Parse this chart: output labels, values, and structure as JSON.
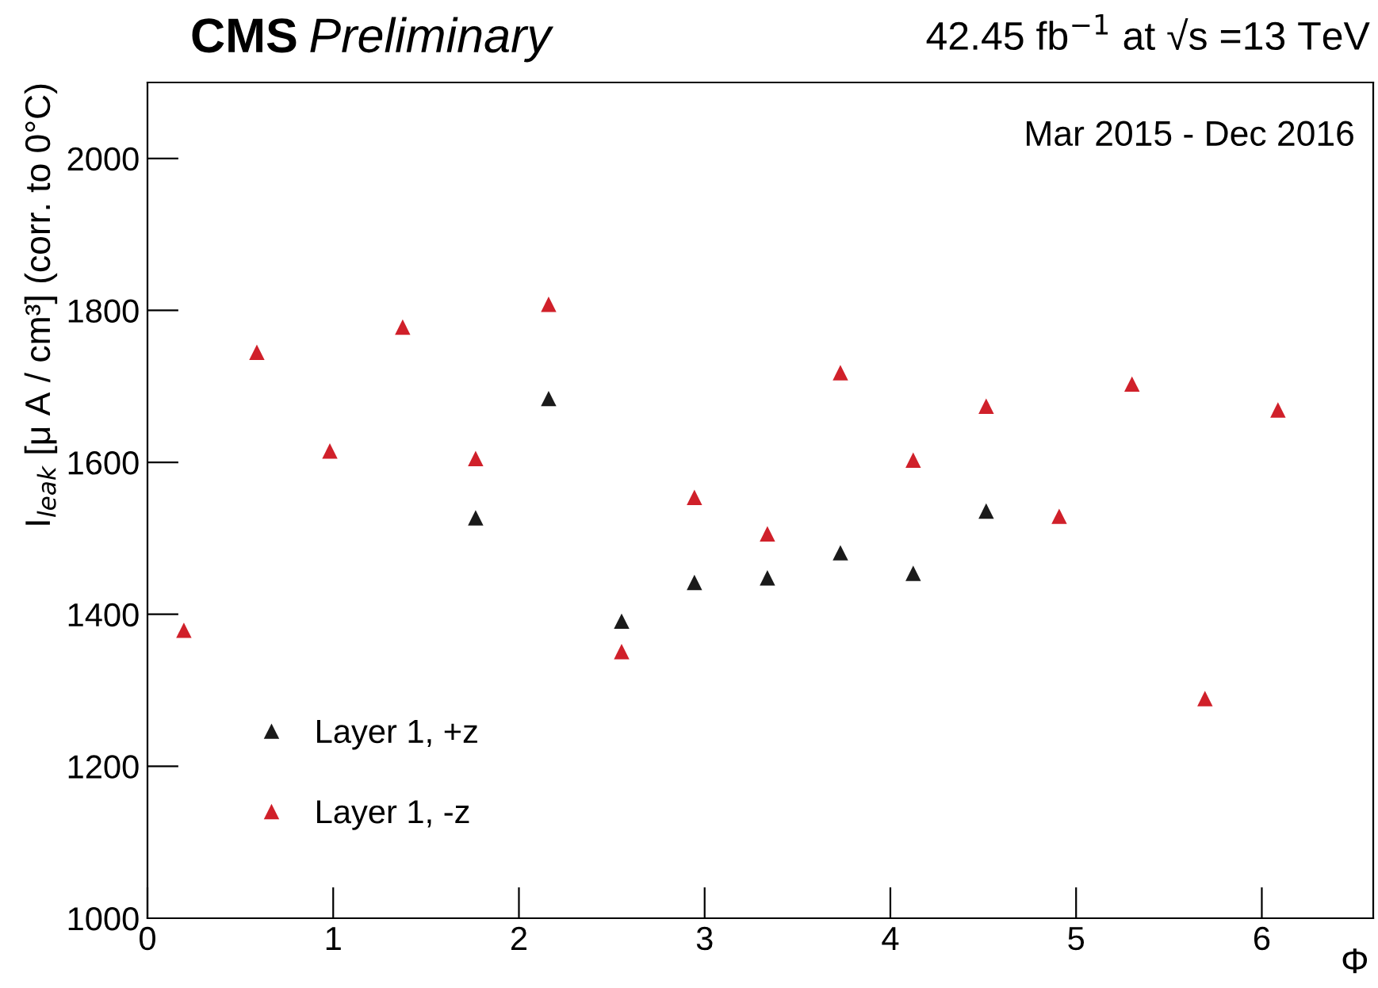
{
  "chart_data": {
    "type": "scatter",
    "title": "CMS",
    "subtitle": "Preliminary",
    "xlabel": "Φ",
    "ylabel": "I$_{leak}$ [μ A / cm³] (corr. to 0°C)",
    "annotations": [
      "42.45 fb$^{−1}$ at √s =13 TeV",
      "Mar 2015 - Dec 2016"
    ],
    "xlim": [
      0,
      6.6
    ],
    "xticks": [
      0,
      1,
      2,
      3,
      4,
      5,
      6
    ],
    "ylim": [
      1000,
      2100
    ],
    "yticks": [
      1000,
      1200,
      1400,
      1600,
      1800,
      2000
    ],
    "marker": "triangle",
    "legend": "bottom left",
    "grid": false,
    "series": [
      {
        "name": "Layer 1, +z",
        "color": "#1a1a1a",
        "x": [
          1.767,
          2.16,
          2.553,
          2.945,
          3.338,
          3.731,
          4.123,
          4.516
        ],
        "values": [
          1527,
          1684,
          1391,
          1442,
          1448,
          1481,
          1454,
          1536
        ]
      },
      {
        "name": "Layer 1, -z",
        "color": "#d0202a",
        "x": [
          0.196,
          0.589,
          0.982,
          1.374,
          1.767,
          2.16,
          2.553,
          2.945,
          3.338,
          3.731,
          4.123,
          4.516,
          4.909,
          5.301,
          5.694,
          6.087
        ],
        "values": [
          1379,
          1745,
          1615,
          1778,
          1605,
          1808,
          1351,
          1554,
          1506,
          1718,
          1603,
          1674,
          1529,
          1703,
          1289,
          1669
        ]
      }
    ]
  }
}
